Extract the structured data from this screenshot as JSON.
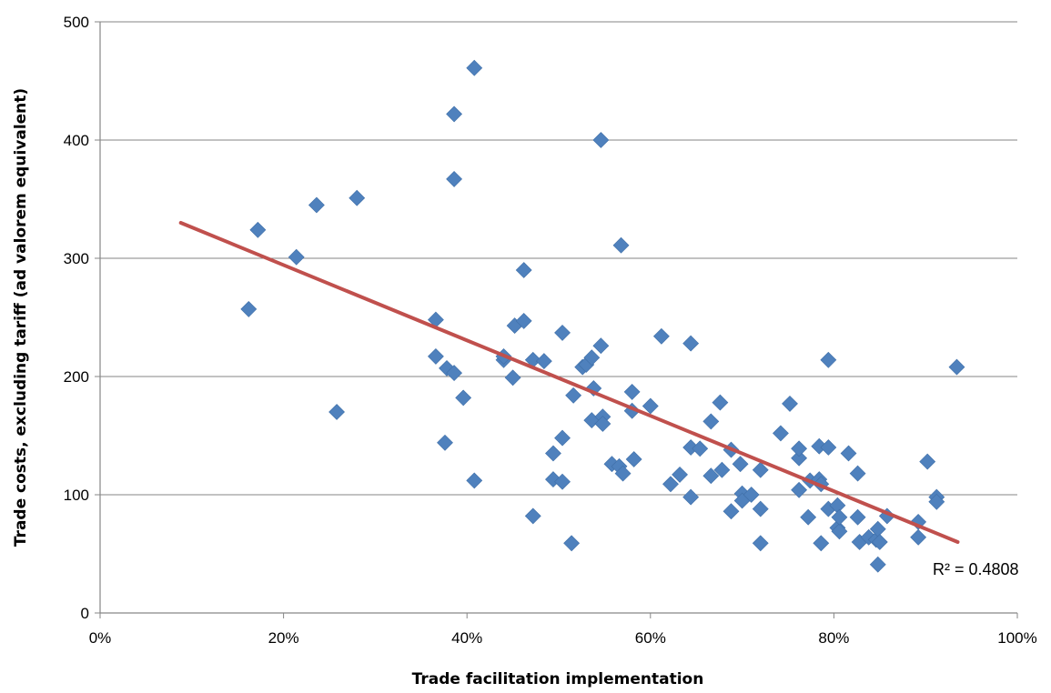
{
  "chart_data": {
    "type": "scatter",
    "title": "",
    "xlabel": "Trade facilitation implementation",
    "ylabel": "Trade costs, excluding tariff (ad valorem equivalent)",
    "xlim": [
      0,
      1
    ],
    "ylim": [
      0,
      500
    ],
    "x_ticks": [
      0,
      0.2,
      0.4,
      0.6,
      0.8,
      1.0
    ],
    "x_tick_labels": [
      "0%",
      "20%",
      "40%",
      "60%",
      "80%",
      "100%"
    ],
    "y_ticks": [
      0,
      100,
      200,
      300,
      400,
      500
    ],
    "y_tick_labels": [
      "0",
      "100",
      "200",
      "300",
      "400",
      "500"
    ],
    "grid": "horizontal",
    "marker": "diamond",
    "marker_color": "#4F81BD",
    "trendline_color": "#C0504D",
    "trendline": {
      "x": [
        0.088,
        0.935
      ],
      "y": [
        330,
        60
      ]
    },
    "r2_label": "R² = 0.4808",
    "points": [
      [
        0.162,
        257
      ],
      [
        0.172,
        324
      ],
      [
        0.214,
        301
      ],
      [
        0.236,
        345
      ],
      [
        0.258,
        170
      ],
      [
        0.28,
        351
      ],
      [
        0.366,
        248
      ],
      [
        0.366,
        217
      ],
      [
        0.376,
        144
      ],
      [
        0.378,
        207
      ],
      [
        0.386,
        203
      ],
      [
        0.386,
        367
      ],
      [
        0.386,
        422
      ],
      [
        0.396,
        182
      ],
      [
        0.408,
        461
      ],
      [
        0.408,
        112
      ],
      [
        0.44,
        214
      ],
      [
        0.44,
        217
      ],
      [
        0.45,
        199
      ],
      [
        0.452,
        243
      ],
      [
        0.462,
        290
      ],
      [
        0.462,
        247
      ],
      [
        0.472,
        214
      ],
      [
        0.472,
        82
      ],
      [
        0.484,
        213
      ],
      [
        0.494,
        135
      ],
      [
        0.494,
        113
      ],
      [
        0.504,
        148
      ],
      [
        0.504,
        237
      ],
      [
        0.504,
        111
      ],
      [
        0.514,
        59
      ],
      [
        0.516,
        184
      ],
      [
        0.526,
        208
      ],
      [
        0.53,
        210
      ],
      [
        0.536,
        163
      ],
      [
        0.536,
        216
      ],
      [
        0.538,
        190
      ],
      [
        0.546,
        400
      ],
      [
        0.546,
        226
      ],
      [
        0.548,
        166
      ],
      [
        0.548,
        160
      ],
      [
        0.558,
        126
      ],
      [
        0.566,
        124
      ],
      [
        0.568,
        311
      ],
      [
        0.57,
        118
      ],
      [
        0.58,
        187
      ],
      [
        0.58,
        171
      ],
      [
        0.582,
        130
      ],
      [
        0.6,
        175
      ],
      [
        0.612,
        234
      ],
      [
        0.622,
        109
      ],
      [
        0.632,
        117
      ],
      [
        0.644,
        98
      ],
      [
        0.644,
        228
      ],
      [
        0.644,
        140
      ],
      [
        0.654,
        139
      ],
      [
        0.666,
        162
      ],
      [
        0.666,
        116
      ],
      [
        0.676,
        178
      ],
      [
        0.678,
        121
      ],
      [
        0.688,
        86
      ],
      [
        0.688,
        138
      ],
      [
        0.698,
        126
      ],
      [
        0.7,
        101
      ],
      [
        0.7,
        95
      ],
      [
        0.71,
        100
      ],
      [
        0.72,
        121
      ],
      [
        0.72,
        88
      ],
      [
        0.72,
        59
      ],
      [
        0.742,
        152
      ],
      [
        0.752,
        177
      ],
      [
        0.762,
        131
      ],
      [
        0.762,
        139
      ],
      [
        0.762,
        104
      ],
      [
        0.772,
        81
      ],
      [
        0.774,
        112
      ],
      [
        0.784,
        141
      ],
      [
        0.784,
        113
      ],
      [
        0.786,
        59
      ],
      [
        0.786,
        109
      ],
      [
        0.794,
        140
      ],
      [
        0.794,
        214
      ],
      [
        0.794,
        88
      ],
      [
        0.804,
        91
      ],
      [
        0.804,
        72
      ],
      [
        0.806,
        69
      ],
      [
        0.806,
        81
      ],
      [
        0.816,
        135
      ],
      [
        0.826,
        118
      ],
      [
        0.826,
        81
      ],
      [
        0.828,
        60
      ],
      [
        0.838,
        64
      ],
      [
        0.846,
        62
      ],
      [
        0.848,
        71
      ],
      [
        0.848,
        41
      ],
      [
        0.85,
        60
      ],
      [
        0.858,
        82
      ],
      [
        0.892,
        77
      ],
      [
        0.892,
        64
      ],
      [
        0.902,
        128
      ],
      [
        0.912,
        98
      ],
      [
        0.912,
        94
      ],
      [
        0.934,
        208
      ]
    ]
  }
}
